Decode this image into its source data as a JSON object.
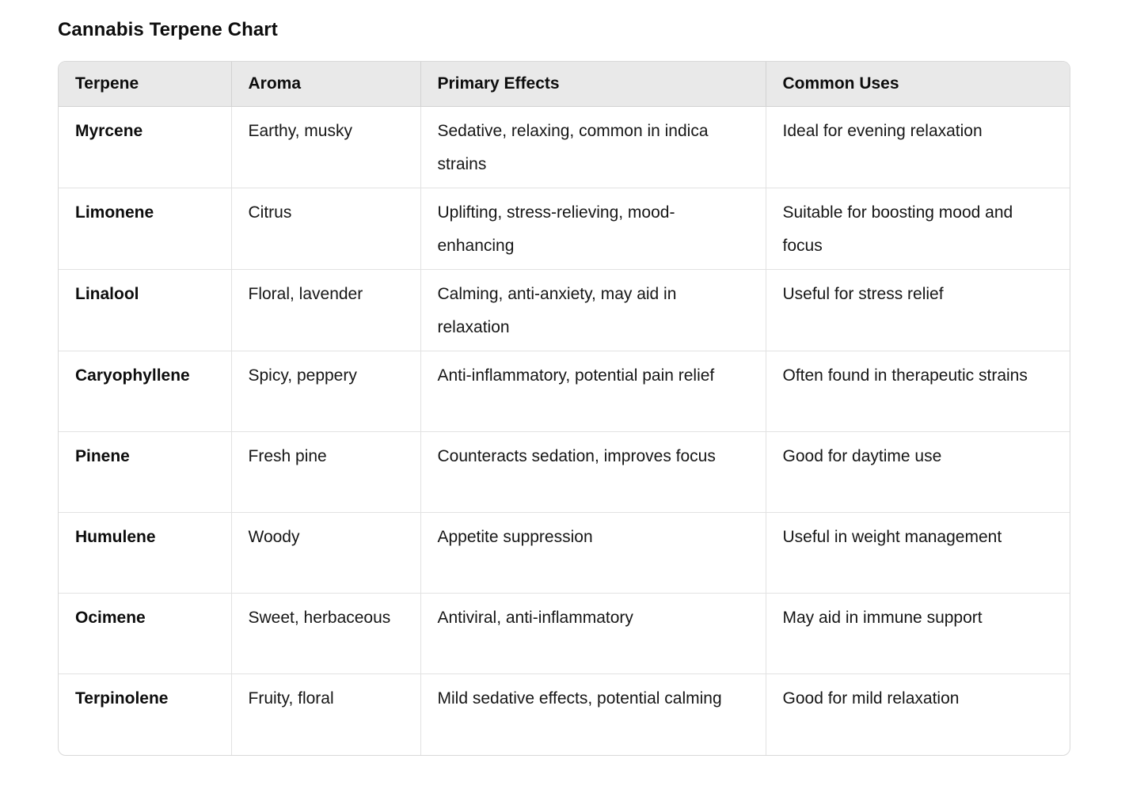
{
  "page_title": "Cannabis Terpene Chart",
  "colors": {
    "header_bg": "#e9e9e9",
    "outer_border": "#d9d9d9",
    "inner_border": "#e2e2e2",
    "text": "#141414"
  },
  "table": {
    "headers": [
      "Terpene",
      "Aroma",
      "Primary Effects",
      "Common Uses"
    ],
    "rows": [
      {
        "terpene": "Myrcene",
        "aroma": "Earthy, musky",
        "effects": "Sedative, relaxing, common in indica strains",
        "uses": "Ideal for evening relaxation"
      },
      {
        "terpene": "Limonene",
        "aroma": "Citrus",
        "effects": "Uplifting, stress-relieving, mood-enhancing",
        "uses": "Suitable for boosting mood and focus"
      },
      {
        "terpene": "Linalool",
        "aroma": "Floral, lavender",
        "effects": "Calming, anti-anxiety, may aid in relaxation",
        "uses": "Useful for stress relief"
      },
      {
        "terpene": "Caryophyllene",
        "aroma": "Spicy, peppery",
        "effects": "Anti-inflammatory, potential pain relief",
        "uses": "Often found in therapeutic strains"
      },
      {
        "terpene": "Pinene",
        "aroma": "Fresh pine",
        "effects": "Counteracts sedation, improves focus",
        "uses": "Good for daytime use"
      },
      {
        "terpene": "Humulene",
        "aroma": "Woody",
        "effects": "Appetite suppression",
        "uses": "Useful in weight management"
      },
      {
        "terpene": "Ocimene",
        "aroma": "Sweet, herbaceous",
        "effects": "Antiviral, anti-inflammatory",
        "uses": "May aid in immune support"
      },
      {
        "terpene": "Terpinolene",
        "aroma": "Fruity, floral",
        "effects": "Mild sedative effects, potential calming",
        "uses": "Good for mild relaxation"
      }
    ]
  }
}
